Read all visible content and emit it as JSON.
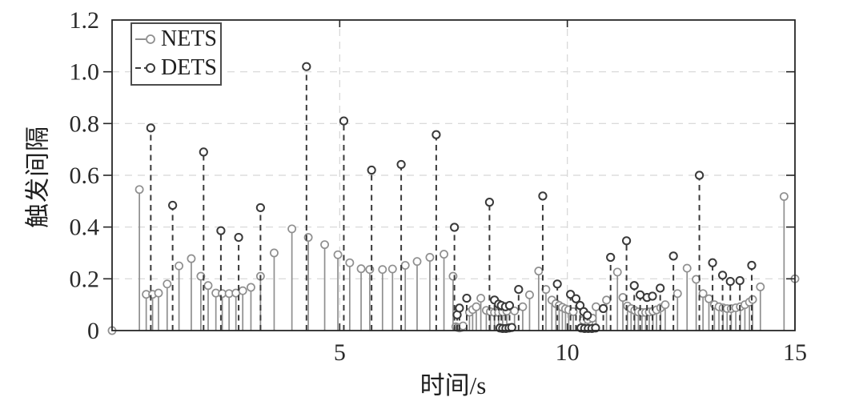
{
  "figure_title": "",
  "axes": {
    "xlabel": "时间/s",
    "ylabel": "触发间隔",
    "xtick_labels": [
      "5",
      "10",
      "15"
    ],
    "ytick_labels": [
      "0",
      "0.2",
      "0.4",
      "0.6",
      "0.8",
      "1.0",
      "1.2"
    ]
  },
  "legend": {
    "items": [
      {
        "label": "NETS",
        "marker": "gray-solid-stem-circle"
      },
      {
        "label": "DETS",
        "marker": "dark-dashed-stem-circle"
      }
    ]
  },
  "colors": {
    "nets": "#8f8f8f",
    "dets": "#3a3a3a",
    "grid": "#d6d6d6",
    "axis": "#262626",
    "background": "#ffffff"
  },
  "chart_data": {
    "type": "stem",
    "title": "",
    "xlabel": "时间/s",
    "ylabel": "触发间隔",
    "xlim": [
      0,
      15
    ],
    "ylim": [
      0,
      1.2
    ],
    "xticks": [
      5,
      10,
      15
    ],
    "yticks": [
      0,
      0.2,
      0.4,
      0.6,
      0.8,
      1.0,
      1.2
    ],
    "grid": "dashed",
    "legend_position": "top-left-inside",
    "series": [
      {
        "name": "NETS",
        "line_style": "solid",
        "marker": "open-circle",
        "color": "#8f8f8f",
        "points": [
          [
            0.0,
            0.0
          ],
          [
            0.6,
            0.545
          ],
          [
            0.75,
            0.14
          ],
          [
            0.89,
            0.14
          ],
          [
            1.02,
            0.145
          ],
          [
            1.21,
            0.18
          ],
          [
            1.47,
            0.25
          ],
          [
            1.74,
            0.278
          ],
          [
            1.95,
            0.21
          ],
          [
            2.11,
            0.174
          ],
          [
            2.28,
            0.145
          ],
          [
            2.42,
            0.143
          ],
          [
            2.57,
            0.143
          ],
          [
            2.72,
            0.145
          ],
          [
            2.87,
            0.154
          ],
          [
            3.05,
            0.167
          ],
          [
            3.26,
            0.21
          ],
          [
            3.56,
            0.3
          ],
          [
            3.95,
            0.393
          ],
          [
            4.31,
            0.36
          ],
          [
            4.67,
            0.332
          ],
          [
            4.96,
            0.293
          ],
          [
            5.22,
            0.262
          ],
          [
            5.47,
            0.239
          ],
          [
            5.66,
            0.236
          ],
          [
            5.94,
            0.236
          ],
          [
            6.16,
            0.238
          ],
          [
            6.44,
            0.252
          ],
          [
            6.7,
            0.267
          ],
          [
            6.98,
            0.283
          ],
          [
            7.29,
            0.295
          ],
          [
            7.49,
            0.21
          ],
          [
            7.55,
            0.015
          ],
          [
            7.59,
            0.012
          ],
          [
            7.63,
            0.01
          ],
          [
            7.67,
            0.012
          ],
          [
            7.71,
            0.018
          ],
          [
            7.85,
            0.071
          ],
          [
            7.92,
            0.081
          ],
          [
            8.0,
            0.092
          ],
          [
            8.1,
            0.125
          ],
          [
            8.22,
            0.078
          ],
          [
            8.31,
            0.073
          ],
          [
            8.4,
            0.07
          ],
          [
            8.49,
            0.07
          ],
          [
            8.58,
            0.072
          ],
          [
            8.67,
            0.075
          ],
          [
            8.84,
            0.076
          ],
          [
            9.02,
            0.092
          ],
          [
            9.17,
            0.138
          ],
          [
            9.37,
            0.23
          ],
          [
            9.53,
            0.159
          ],
          [
            9.66,
            0.118
          ],
          [
            9.75,
            0.104
          ],
          [
            9.82,
            0.097
          ],
          [
            9.89,
            0.09
          ],
          [
            9.96,
            0.084
          ],
          [
            10.03,
            0.08
          ],
          [
            10.13,
            0.073
          ],
          [
            10.35,
            0.04
          ],
          [
            10.45,
            0.042
          ],
          [
            10.55,
            0.048
          ],
          [
            10.63,
            0.092
          ],
          [
            10.86,
            0.118
          ],
          [
            11.1,
            0.226
          ],
          [
            11.22,
            0.128
          ],
          [
            11.32,
            0.095
          ],
          [
            11.4,
            0.085
          ],
          [
            11.48,
            0.078
          ],
          [
            11.56,
            0.072
          ],
          [
            11.64,
            0.07
          ],
          [
            11.72,
            0.07
          ],
          [
            11.8,
            0.072
          ],
          [
            11.88,
            0.075
          ],
          [
            11.96,
            0.08
          ],
          [
            12.05,
            0.088
          ],
          [
            12.15,
            0.1
          ],
          [
            12.42,
            0.143
          ],
          [
            12.63,
            0.241
          ],
          [
            12.83,
            0.198
          ],
          [
            12.98,
            0.143
          ],
          [
            13.11,
            0.123
          ],
          [
            13.23,
            0.1
          ],
          [
            13.33,
            0.092
          ],
          [
            13.42,
            0.088
          ],
          [
            13.51,
            0.085
          ],
          [
            13.6,
            0.085
          ],
          [
            13.7,
            0.088
          ],
          [
            13.8,
            0.092
          ],
          [
            13.9,
            0.1
          ],
          [
            14.0,
            0.11
          ],
          [
            14.07,
            0.12
          ],
          [
            14.24,
            0.169
          ],
          [
            14.76,
            0.518
          ],
          [
            15.0,
            0.2
          ]
        ]
      },
      {
        "name": "DETS",
        "line_style": "dashed",
        "marker": "open-circle",
        "color": "#3a3a3a",
        "points": [
          [
            0.85,
            0.783
          ],
          [
            1.33,
            0.484
          ],
          [
            2.01,
            0.69
          ],
          [
            2.39,
            0.386
          ],
          [
            2.78,
            0.36
          ],
          [
            3.26,
            0.475
          ],
          [
            4.27,
            1.02
          ],
          [
            5.09,
            0.81
          ],
          [
            5.7,
            0.62
          ],
          [
            6.35,
            0.642
          ],
          [
            7.12,
            0.757
          ],
          [
            7.52,
            0.399
          ],
          [
            7.58,
            0.061
          ],
          [
            7.63,
            0.087
          ],
          [
            7.79,
            0.125
          ],
          [
            8.29,
            0.496
          ],
          [
            8.4,
            0.118
          ],
          [
            8.49,
            0.102
          ],
          [
            8.52,
            0.01
          ],
          [
            8.55,
            0.097
          ],
          [
            8.58,
            0.008
          ],
          [
            8.64,
            0.092
          ],
          [
            8.65,
            0.008
          ],
          [
            8.72,
            0.01
          ],
          [
            8.73,
            0.097
          ],
          [
            8.78,
            0.012
          ],
          [
            8.93,
            0.159
          ],
          [
            9.46,
            0.52
          ],
          [
            9.78,
            0.18
          ],
          [
            10.07,
            0.14
          ],
          [
            10.19,
            0.123
          ],
          [
            10.28,
            0.097
          ],
          [
            10.3,
            0.01
          ],
          [
            10.36,
            0.073
          ],
          [
            10.38,
            0.008
          ],
          [
            10.44,
            0.059
          ],
          [
            10.46,
            0.008
          ],
          [
            10.54,
            0.008
          ],
          [
            10.62,
            0.01
          ],
          [
            10.79,
            0.085
          ],
          [
            10.95,
            0.283
          ],
          [
            11.3,
            0.347
          ],
          [
            11.47,
            0.174
          ],
          [
            11.6,
            0.138
          ],
          [
            11.75,
            0.128
          ],
          [
            11.87,
            0.133
          ],
          [
            12.04,
            0.164
          ],
          [
            12.33,
            0.288
          ],
          [
            12.9,
            0.6
          ],
          [
            13.19,
            0.262
          ],
          [
            13.41,
            0.214
          ],
          [
            13.58,
            0.19
          ],
          [
            13.79,
            0.193
          ],
          [
            14.05,
            0.252
          ]
        ]
      }
    ]
  }
}
